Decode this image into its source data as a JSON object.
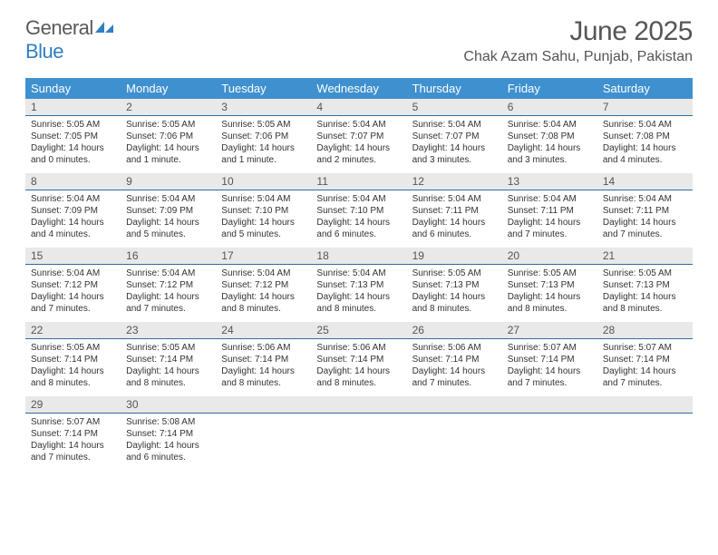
{
  "brand": {
    "part1": "General",
    "part2": "Blue"
  },
  "title": "June 2025",
  "location": "Chak Azam Sahu, Punjab, Pakistan",
  "colors": {
    "header_bg": "#3f90cf",
    "header_text": "#ffffff",
    "daynum_bg": "#e9e9e9",
    "daynum_border": "#2f6da0",
    "brand_gray": "#5a5a5a",
    "brand_blue": "#2f7fc2"
  },
  "weekdays": [
    "Sunday",
    "Monday",
    "Tuesday",
    "Wednesday",
    "Thursday",
    "Friday",
    "Saturday"
  ],
  "weeks": [
    [
      {
        "n": "1",
        "sr": "Sunrise: 5:05 AM",
        "ss": "Sunset: 7:05 PM",
        "d1": "Daylight: 14 hours",
        "d2": "and 0 minutes."
      },
      {
        "n": "2",
        "sr": "Sunrise: 5:05 AM",
        "ss": "Sunset: 7:06 PM",
        "d1": "Daylight: 14 hours",
        "d2": "and 1 minute."
      },
      {
        "n": "3",
        "sr": "Sunrise: 5:05 AM",
        "ss": "Sunset: 7:06 PM",
        "d1": "Daylight: 14 hours",
        "d2": "and 1 minute."
      },
      {
        "n": "4",
        "sr": "Sunrise: 5:04 AM",
        "ss": "Sunset: 7:07 PM",
        "d1": "Daylight: 14 hours",
        "d2": "and 2 minutes."
      },
      {
        "n": "5",
        "sr": "Sunrise: 5:04 AM",
        "ss": "Sunset: 7:07 PM",
        "d1": "Daylight: 14 hours",
        "d2": "and 3 minutes."
      },
      {
        "n": "6",
        "sr": "Sunrise: 5:04 AM",
        "ss": "Sunset: 7:08 PM",
        "d1": "Daylight: 14 hours",
        "d2": "and 3 minutes."
      },
      {
        "n": "7",
        "sr": "Sunrise: 5:04 AM",
        "ss": "Sunset: 7:08 PM",
        "d1": "Daylight: 14 hours",
        "d2": "and 4 minutes."
      }
    ],
    [
      {
        "n": "8",
        "sr": "Sunrise: 5:04 AM",
        "ss": "Sunset: 7:09 PM",
        "d1": "Daylight: 14 hours",
        "d2": "and 4 minutes."
      },
      {
        "n": "9",
        "sr": "Sunrise: 5:04 AM",
        "ss": "Sunset: 7:09 PM",
        "d1": "Daylight: 14 hours",
        "d2": "and 5 minutes."
      },
      {
        "n": "10",
        "sr": "Sunrise: 5:04 AM",
        "ss": "Sunset: 7:10 PM",
        "d1": "Daylight: 14 hours",
        "d2": "and 5 minutes."
      },
      {
        "n": "11",
        "sr": "Sunrise: 5:04 AM",
        "ss": "Sunset: 7:10 PM",
        "d1": "Daylight: 14 hours",
        "d2": "and 6 minutes."
      },
      {
        "n": "12",
        "sr": "Sunrise: 5:04 AM",
        "ss": "Sunset: 7:11 PM",
        "d1": "Daylight: 14 hours",
        "d2": "and 6 minutes."
      },
      {
        "n": "13",
        "sr": "Sunrise: 5:04 AM",
        "ss": "Sunset: 7:11 PM",
        "d1": "Daylight: 14 hours",
        "d2": "and 7 minutes."
      },
      {
        "n": "14",
        "sr": "Sunrise: 5:04 AM",
        "ss": "Sunset: 7:11 PM",
        "d1": "Daylight: 14 hours",
        "d2": "and 7 minutes."
      }
    ],
    [
      {
        "n": "15",
        "sr": "Sunrise: 5:04 AM",
        "ss": "Sunset: 7:12 PM",
        "d1": "Daylight: 14 hours",
        "d2": "and 7 minutes."
      },
      {
        "n": "16",
        "sr": "Sunrise: 5:04 AM",
        "ss": "Sunset: 7:12 PM",
        "d1": "Daylight: 14 hours",
        "d2": "and 7 minutes."
      },
      {
        "n": "17",
        "sr": "Sunrise: 5:04 AM",
        "ss": "Sunset: 7:12 PM",
        "d1": "Daylight: 14 hours",
        "d2": "and 8 minutes."
      },
      {
        "n": "18",
        "sr": "Sunrise: 5:04 AM",
        "ss": "Sunset: 7:13 PM",
        "d1": "Daylight: 14 hours",
        "d2": "and 8 minutes."
      },
      {
        "n": "19",
        "sr": "Sunrise: 5:05 AM",
        "ss": "Sunset: 7:13 PM",
        "d1": "Daylight: 14 hours",
        "d2": "and 8 minutes."
      },
      {
        "n": "20",
        "sr": "Sunrise: 5:05 AM",
        "ss": "Sunset: 7:13 PM",
        "d1": "Daylight: 14 hours",
        "d2": "and 8 minutes."
      },
      {
        "n": "21",
        "sr": "Sunrise: 5:05 AM",
        "ss": "Sunset: 7:13 PM",
        "d1": "Daylight: 14 hours",
        "d2": "and 8 minutes."
      }
    ],
    [
      {
        "n": "22",
        "sr": "Sunrise: 5:05 AM",
        "ss": "Sunset: 7:14 PM",
        "d1": "Daylight: 14 hours",
        "d2": "and 8 minutes."
      },
      {
        "n": "23",
        "sr": "Sunrise: 5:05 AM",
        "ss": "Sunset: 7:14 PM",
        "d1": "Daylight: 14 hours",
        "d2": "and 8 minutes."
      },
      {
        "n": "24",
        "sr": "Sunrise: 5:06 AM",
        "ss": "Sunset: 7:14 PM",
        "d1": "Daylight: 14 hours",
        "d2": "and 8 minutes."
      },
      {
        "n": "25",
        "sr": "Sunrise: 5:06 AM",
        "ss": "Sunset: 7:14 PM",
        "d1": "Daylight: 14 hours",
        "d2": "and 8 minutes."
      },
      {
        "n": "26",
        "sr": "Sunrise: 5:06 AM",
        "ss": "Sunset: 7:14 PM",
        "d1": "Daylight: 14 hours",
        "d2": "and 7 minutes."
      },
      {
        "n": "27",
        "sr": "Sunrise: 5:07 AM",
        "ss": "Sunset: 7:14 PM",
        "d1": "Daylight: 14 hours",
        "d2": "and 7 minutes."
      },
      {
        "n": "28",
        "sr": "Sunrise: 5:07 AM",
        "ss": "Sunset: 7:14 PM",
        "d1": "Daylight: 14 hours",
        "d2": "and 7 minutes."
      }
    ],
    [
      {
        "n": "29",
        "sr": "Sunrise: 5:07 AM",
        "ss": "Sunset: 7:14 PM",
        "d1": "Daylight: 14 hours",
        "d2": "and 7 minutes."
      },
      {
        "n": "30",
        "sr": "Sunrise: 5:08 AM",
        "ss": "Sunset: 7:14 PM",
        "d1": "Daylight: 14 hours",
        "d2": "and 6 minutes."
      },
      {
        "n": "",
        "sr": "",
        "ss": "",
        "d1": "",
        "d2": ""
      },
      {
        "n": "",
        "sr": "",
        "ss": "",
        "d1": "",
        "d2": ""
      },
      {
        "n": "",
        "sr": "",
        "ss": "",
        "d1": "",
        "d2": ""
      },
      {
        "n": "",
        "sr": "",
        "ss": "",
        "d1": "",
        "d2": ""
      },
      {
        "n": "",
        "sr": "",
        "ss": "",
        "d1": "",
        "d2": ""
      }
    ]
  ]
}
